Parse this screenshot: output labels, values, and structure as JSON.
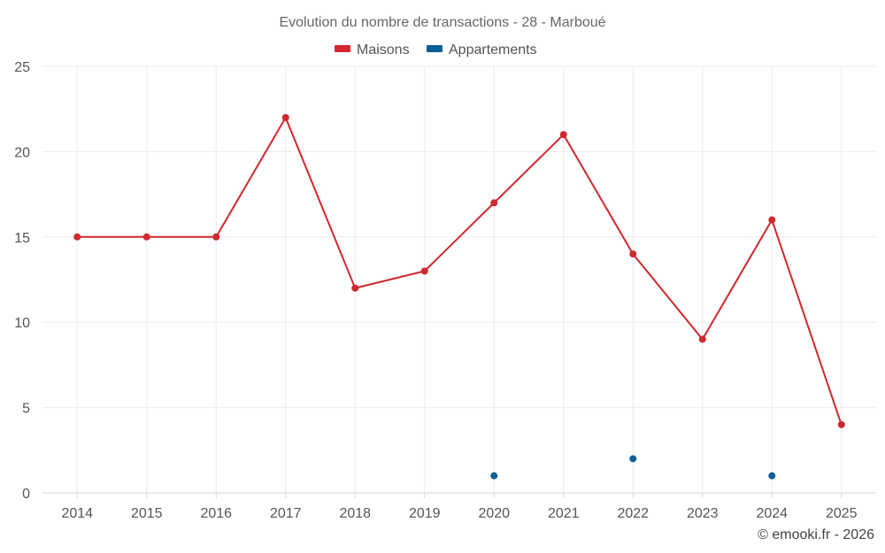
{
  "chart_data": {
    "type": "line",
    "title": "Evolution du nombre de transactions - 28 - Marboué",
    "categories": [
      "2014",
      "2015",
      "2016",
      "2017",
      "2018",
      "2019",
      "2020",
      "2021",
      "2022",
      "2023",
      "2024",
      "2025"
    ],
    "series": [
      {
        "name": "Maisons",
        "color": "#d0282e",
        "values": [
          15,
          15,
          15,
          22,
          12,
          13,
          17,
          21,
          14,
          9,
          16,
          4
        ]
      },
      {
        "name": "Appartements",
        "color": "#0b5f97",
        "values": [
          null,
          null,
          null,
          null,
          null,
          null,
          1,
          null,
          2,
          null,
          1,
          null
        ]
      }
    ],
    "yticks": [
      "0",
      "5",
      "10",
      "15",
      "20",
      "25"
    ],
    "ylim": [
      0,
      25
    ],
    "xlabel": "",
    "ylabel": "",
    "grid": true,
    "legend_position": "top-center",
    "credit": "© emooki.fr - 2026"
  }
}
